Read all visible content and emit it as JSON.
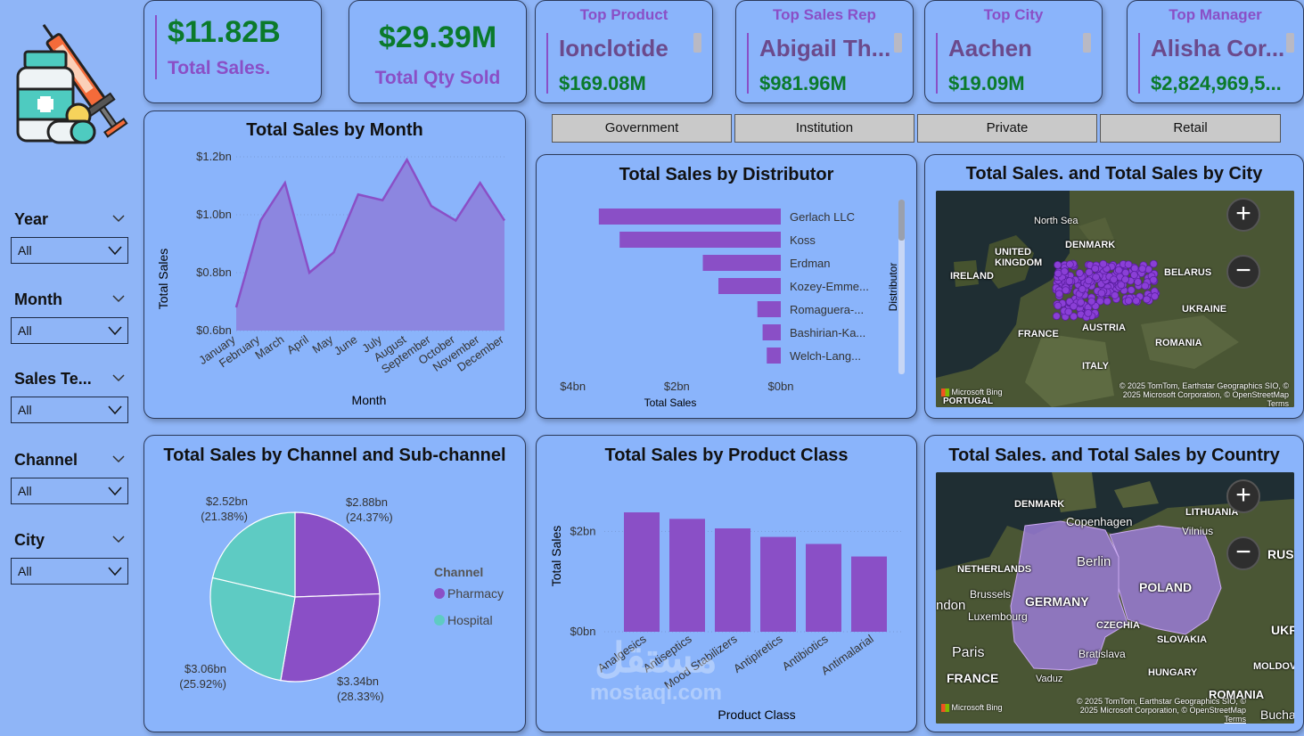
{
  "kpis": {
    "total_sales_value": "$11.82B",
    "total_sales_label": "Total Sales.",
    "total_qty_value": "$29.39M",
    "total_qty_label": "Total Qty Sold"
  },
  "top_cards": [
    {
      "title": "Top Product",
      "name": "Ionclotide",
      "amount": "$169.08M"
    },
    {
      "title": "Top Sales Rep",
      "name": "Abigail Th...",
      "amount": "$981.96M"
    },
    {
      "title": "Top City",
      "name": "Aachen",
      "amount": "$19.09M"
    },
    {
      "title": "Top Manager",
      "name": "Alisha Cor...",
      "amount": "$2,824,969,5..."
    }
  ],
  "slicers": [
    {
      "label": "Year",
      "value": "All"
    },
    {
      "label": "Month",
      "value": "All"
    },
    {
      "label": "Sales Te...",
      "value": "All"
    },
    {
      "label": "Channel",
      "value": "All"
    },
    {
      "label": "City",
      "value": "All"
    }
  ],
  "channel_buttons": [
    "Government",
    "Institution",
    "Private",
    "Retail"
  ],
  "sales_by_month": {
    "title": "Total Sales by Month",
    "xlabel": "Month",
    "ylabel": "Total Sales",
    "y_ticks": [
      "$1.2bn",
      "$1.0bn",
      "$0.8bn",
      "$0.6bn"
    ],
    "chart_data": {
      "type": "area",
      "categories": [
        "January",
        "February",
        "March",
        "April",
        "May",
        "June",
        "July",
        "August",
        "September",
        "October",
        "November",
        "December"
      ],
      "values": [
        0.68,
        0.98,
        1.11,
        0.8,
        0.87,
        1.07,
        1.05,
        1.19,
        1.03,
        0.98,
        1.11,
        0.98
      ],
      "ylim": [
        0.6,
        1.2
      ],
      "grid": true,
      "color": "#8c86e0",
      "line_color": "#8a4fc6"
    }
  },
  "sales_by_distributor": {
    "title": "Total Sales by Distributor",
    "xlabel": "Total Sales",
    "ylabel": "Distributor",
    "x_ticks": [
      "$4bn",
      "$2bn",
      "$0bn"
    ],
    "chart_data": {
      "type": "bar",
      "orientation": "horizontal-reversed",
      "categories": [
        "Gerlach LLC",
        "Koss",
        "Erdman",
        "Kozey-Emme...",
        "Romaguera-...",
        "Bashirian-Ka...",
        "Welch-Lang..."
      ],
      "values": [
        3.5,
        3.1,
        1.5,
        1.2,
        0.45,
        0.35,
        0.27
      ],
      "xlim": [
        0,
        4.2
      ],
      "color": "#8a4fc6"
    }
  },
  "sales_by_city_map": {
    "title": "Total Sales. and Total Sales by City",
    "labels": [
      "North Sea",
      "DENMARK",
      "UNITED KINGDOM",
      "IRELAND",
      "BELARUS",
      "UKRAINE",
      "FRANCE",
      "AUSTRIA",
      "ROMANIA",
      "ITALY",
      "PORTUGAL"
    ],
    "copyright": "© 2025 TomTom, Earthstar Geographics SIO, © 2025 Microsoft Corporation, © OpenStreetMap",
    "terms": "Terms",
    "brand": "Microsoft Bing"
  },
  "sales_by_channel": {
    "title": "Total Sales by Channel and Sub-channel",
    "legend_title": "Channel",
    "chart_data": {
      "type": "pie",
      "slices": [
        {
          "label": "$2.88bn",
          "pct": "(24.37%)",
          "value": 2.88,
          "channel": "Pharmacy",
          "color": "#8a4fc6"
        },
        {
          "label": "$3.34bn",
          "pct": "(28.33%)",
          "value": 3.34,
          "channel": "Pharmacy",
          "color": "#8a4fc6"
        },
        {
          "label": "$3.06bn",
          "pct": "(25.92%)",
          "value": 3.06,
          "channel": "Hospital",
          "color": "#5ecbc3"
        },
        {
          "label": "$2.52bn",
          "pct": "(21.38%)",
          "value": 2.52,
          "channel": "Hospital",
          "color": "#5ecbc3"
        }
      ],
      "legend": [
        {
          "name": "Pharmacy",
          "color": "#8a4fc6"
        },
        {
          "name": "Hospital",
          "color": "#5ecbc3"
        }
      ]
    }
  },
  "sales_by_product_class": {
    "title": "Total Sales by Product Class",
    "xlabel": "Product Class",
    "ylabel": "Total Sales",
    "y_ticks": [
      "$2bn",
      "$0bn"
    ],
    "chart_data": {
      "type": "bar",
      "categories": [
        "Analgesics",
        "Antiseptics",
        "Mood Stabilizers",
        "Antipiretics",
        "Antibiotics",
        "Antimalarial"
      ],
      "values": [
        2.38,
        2.25,
        2.06,
        1.89,
        1.75,
        1.5
      ],
      "ylim": [
        0,
        2.6
      ],
      "color": "#8a4fc6"
    }
  },
  "sales_by_country_map": {
    "title": "Total Sales. and Total Sales by Country",
    "labels": [
      "DENMARK",
      "Copenhagen",
      "LITHUANIA",
      "Vilnius",
      "RUS",
      "NETHERLANDS",
      "Berlin",
      "Brussels",
      "GERMANY",
      "POLAND",
      "ndon",
      "Luxembourg",
      "CZECHIA",
      "UKR",
      "Paris",
      "SLOVAKIA",
      "Bratislava",
      "MOLDOVA",
      "FRANCE",
      "Vaduz",
      "HUNGARY",
      "ROMANIA",
      "Buchar"
    ],
    "copyright": "© 2025 TomTom, Earthstar Geographics SIO, © 2025 Microsoft Corporation, © OpenStreetMap",
    "terms": "Terms",
    "brand": "Microsoft Bing"
  },
  "watermark": {
    "arabic": "مستقل",
    "text": "mostaql.com"
  }
}
